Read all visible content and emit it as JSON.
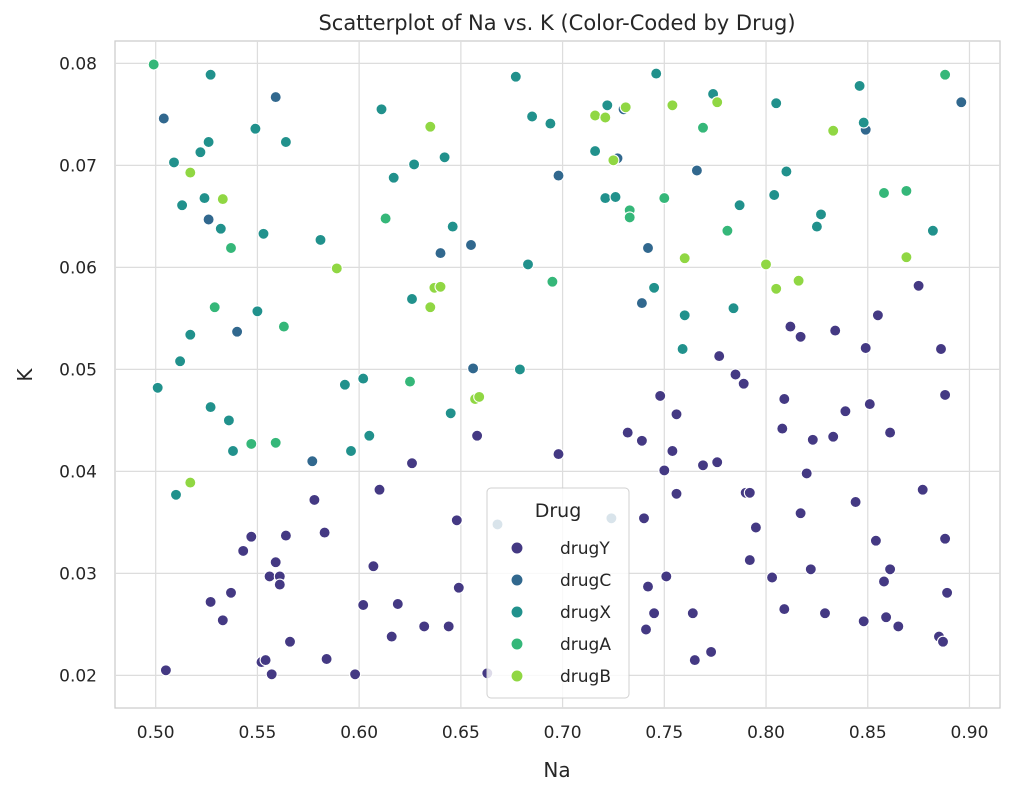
{
  "chart_data": {
    "type": "scatter",
    "title": "Scatterplot of Na vs. K (Color-Coded by Drug)",
    "xlabel": "Na",
    "ylabel": "K",
    "xlim": [
      0.48,
      0.915
    ],
    "ylim": [
      0.0168,
      0.0822
    ],
    "xticks": [
      "0.50",
      "0.55",
      "0.60",
      "0.65",
      "0.70",
      "0.75",
      "0.80",
      "0.85",
      "0.90"
    ],
    "yticks": [
      "0.02",
      "0.03",
      "0.04",
      "0.05",
      "0.06",
      "0.07",
      "0.08"
    ],
    "grid": true,
    "legend": {
      "title": "Drug",
      "position": "lower-center"
    },
    "series": [
      {
        "name": "drugY",
        "color": "#443983",
        "points": [
          [
            0.505,
            0.0205
          ],
          [
            0.527,
            0.0272
          ],
          [
            0.533,
            0.0254
          ],
          [
            0.537,
            0.0281
          ],
          [
            0.543,
            0.0322
          ],
          [
            0.547,
            0.0336
          ],
          [
            0.552,
            0.0213
          ],
          [
            0.554,
            0.0215
          ],
          [
            0.556,
            0.0297
          ],
          [
            0.557,
            0.0201
          ],
          [
            0.559,
            0.0311
          ],
          [
            0.561,
            0.0297
          ],
          [
            0.561,
            0.0289
          ],
          [
            0.564,
            0.0337
          ],
          [
            0.566,
            0.0233
          ],
          [
            0.578,
            0.0372
          ],
          [
            0.583,
            0.034
          ],
          [
            0.584,
            0.0216
          ],
          [
            0.598,
            0.0201
          ],
          [
            0.602,
            0.0269
          ],
          [
            0.607,
            0.0307
          ],
          [
            0.61,
            0.0382
          ],
          [
            0.616,
            0.0238
          ],
          [
            0.619,
            0.027
          ],
          [
            0.626,
            0.0408
          ],
          [
            0.632,
            0.0248
          ],
          [
            0.644,
            0.0248
          ],
          [
            0.648,
            0.0352
          ],
          [
            0.649,
            0.0286
          ],
          [
            0.658,
            0.0435
          ],
          [
            0.663,
            0.0202
          ],
          [
            0.698,
            0.0417
          ],
          [
            0.732,
            0.0438
          ],
          [
            0.739,
            0.043
          ],
          [
            0.74,
            0.0354
          ],
          [
            0.741,
            0.0245
          ],
          [
            0.742,
            0.0287
          ],
          [
            0.745,
            0.0261
          ],
          [
            0.748,
            0.0474
          ],
          [
            0.75,
            0.0401
          ],
          [
            0.751,
            0.0297
          ],
          [
            0.754,
            0.042
          ],
          [
            0.756,
            0.0456
          ],
          [
            0.756,
            0.0378
          ],
          [
            0.764,
            0.0261
          ],
          [
            0.765,
            0.0215
          ],
          [
            0.769,
            0.0406
          ],
          [
            0.773,
            0.0223
          ],
          [
            0.776,
            0.0409
          ],
          [
            0.777,
            0.0513
          ],
          [
            0.785,
            0.0495
          ],
          [
            0.789,
            0.0486
          ],
          [
            0.79,
            0.0379
          ],
          [
            0.792,
            0.0379
          ],
          [
            0.792,
            0.0313
          ],
          [
            0.795,
            0.0345
          ],
          [
            0.803,
            0.0296
          ],
          [
            0.808,
            0.0442
          ],
          [
            0.809,
            0.0471
          ],
          [
            0.809,
            0.0265
          ],
          [
            0.812,
            0.0542
          ],
          [
            0.817,
            0.0532
          ],
          [
            0.817,
            0.0359
          ],
          [
            0.82,
            0.0398
          ],
          [
            0.822,
            0.0304
          ],
          [
            0.823,
            0.0431
          ],
          [
            0.829,
            0.0261
          ],
          [
            0.833,
            0.0434
          ],
          [
            0.834,
            0.0538
          ],
          [
            0.839,
            0.0459
          ],
          [
            0.844,
            0.037
          ],
          [
            0.848,
            0.0253
          ],
          [
            0.849,
            0.0521
          ],
          [
            0.851,
            0.0466
          ],
          [
            0.854,
            0.0332
          ],
          [
            0.855,
            0.0553
          ],
          [
            0.858,
            0.0292
          ],
          [
            0.859,
            0.0257
          ],
          [
            0.861,
            0.0438
          ],
          [
            0.861,
            0.0304
          ],
          [
            0.865,
            0.0248
          ],
          [
            0.875,
            0.0582
          ],
          [
            0.877,
            0.0382
          ],
          [
            0.885,
            0.0238
          ],
          [
            0.886,
            0.052
          ],
          [
            0.887,
            0.0233
          ],
          [
            0.888,
            0.0475
          ],
          [
            0.888,
            0.0334
          ],
          [
            0.889,
            0.0281
          ]
        ]
      },
      {
        "name": "drugC",
        "color": "#31688e",
        "points": [
          [
            0.504,
            0.0746
          ],
          [
            0.526,
            0.0647
          ],
          [
            0.54,
            0.0537
          ],
          [
            0.559,
            0.0767
          ],
          [
            0.577,
            0.041
          ],
          [
            0.64,
            0.0614
          ],
          [
            0.655,
            0.0622
          ],
          [
            0.656,
            0.0501
          ],
          [
            0.668,
            0.0348
          ],
          [
            0.698,
            0.069
          ],
          [
            0.724,
            0.0354
          ],
          [
            0.727,
            0.0707
          ],
          [
            0.73,
            0.0755
          ],
          [
            0.739,
            0.0565
          ],
          [
            0.742,
            0.0619
          ],
          [
            0.766,
            0.0695
          ],
          [
            0.849,
            0.0735
          ],
          [
            0.896,
            0.0762
          ]
        ]
      },
      {
        "name": "drugX",
        "color": "#21918c",
        "points": [
          [
            0.501,
            0.0482
          ],
          [
            0.509,
            0.0703
          ],
          [
            0.51,
            0.0377
          ],
          [
            0.512,
            0.0508
          ],
          [
            0.513,
            0.0661
          ],
          [
            0.517,
            0.0534
          ],
          [
            0.522,
            0.0713
          ],
          [
            0.524,
            0.0668
          ],
          [
            0.526,
            0.0723
          ],
          [
            0.527,
            0.0789
          ],
          [
            0.527,
            0.0463
          ],
          [
            0.532,
            0.0638
          ],
          [
            0.536,
            0.045
          ],
          [
            0.538,
            0.042
          ],
          [
            0.549,
            0.0736
          ],
          [
            0.55,
            0.0557
          ],
          [
            0.553,
            0.0633
          ],
          [
            0.564,
            0.0723
          ],
          [
            0.581,
            0.0627
          ],
          [
            0.593,
            0.0485
          ],
          [
            0.596,
            0.042
          ],
          [
            0.602,
            0.0491
          ],
          [
            0.605,
            0.0435
          ],
          [
            0.611,
            0.0755
          ],
          [
            0.617,
            0.0688
          ],
          [
            0.626,
            0.0569
          ],
          [
            0.627,
            0.0701
          ],
          [
            0.642,
            0.0708
          ],
          [
            0.645,
            0.0457
          ],
          [
            0.646,
            0.064
          ],
          [
            0.677,
            0.0787
          ],
          [
            0.679,
            0.05
          ],
          [
            0.683,
            0.0603
          ],
          [
            0.685,
            0.0748
          ],
          [
            0.694,
            0.0741
          ],
          [
            0.716,
            0.0714
          ],
          [
            0.721,
            0.0668
          ],
          [
            0.722,
            0.0759
          ],
          [
            0.726,
            0.0669
          ],
          [
            0.745,
            0.058
          ],
          [
            0.746,
            0.079
          ],
          [
            0.76,
            0.0553
          ],
          [
            0.759,
            0.052
          ],
          [
            0.774,
            0.077
          ],
          [
            0.784,
            0.056
          ],
          [
            0.787,
            0.0661
          ],
          [
            0.804,
            0.0671
          ],
          [
            0.805,
            0.0761
          ],
          [
            0.81,
            0.0694
          ],
          [
            0.825,
            0.064
          ],
          [
            0.827,
            0.0652
          ],
          [
            0.846,
            0.0778
          ],
          [
            0.848,
            0.0742
          ],
          [
            0.882,
            0.0636
          ]
        ]
      },
      {
        "name": "drugA",
        "color": "#35b779",
        "points": [
          [
            0.499,
            0.0799
          ],
          [
            0.529,
            0.0561
          ],
          [
            0.537,
            0.0619
          ],
          [
            0.547,
            0.0427
          ],
          [
            0.559,
            0.0428
          ],
          [
            0.563,
            0.0542
          ],
          [
            0.613,
            0.0648
          ],
          [
            0.625,
            0.0488
          ],
          [
            0.695,
            0.0586
          ],
          [
            0.733,
            0.0656
          ],
          [
            0.733,
            0.0649
          ],
          [
            0.75,
            0.0668
          ],
          [
            0.769,
            0.0737
          ],
          [
            0.781,
            0.0636
          ],
          [
            0.858,
            0.0673
          ],
          [
            0.869,
            0.0675
          ],
          [
            0.888,
            0.0789
          ]
        ]
      },
      {
        "name": "drugB",
        "color": "#90d743",
        "points": [
          [
            0.517,
            0.0389
          ],
          [
            0.517,
            0.0693
          ],
          [
            0.533,
            0.0667
          ],
          [
            0.589,
            0.0599
          ],
          [
            0.635,
            0.0561
          ],
          [
            0.635,
            0.0738
          ],
          [
            0.637,
            0.058
          ],
          [
            0.64,
            0.0581
          ],
          [
            0.657,
            0.0471
          ],
          [
            0.659,
            0.0473
          ],
          [
            0.716,
            0.0749
          ],
          [
            0.721,
            0.0747
          ],
          [
            0.725,
            0.0705
          ],
          [
            0.731,
            0.0757
          ],
          [
            0.754,
            0.0759
          ],
          [
            0.76,
            0.0609
          ],
          [
            0.776,
            0.0762
          ],
          [
            0.8,
            0.0603
          ],
          [
            0.805,
            0.0579
          ],
          [
            0.816,
            0.0587
          ],
          [
            0.833,
            0.0734
          ],
          [
            0.869,
            0.061
          ]
        ]
      }
    ]
  }
}
